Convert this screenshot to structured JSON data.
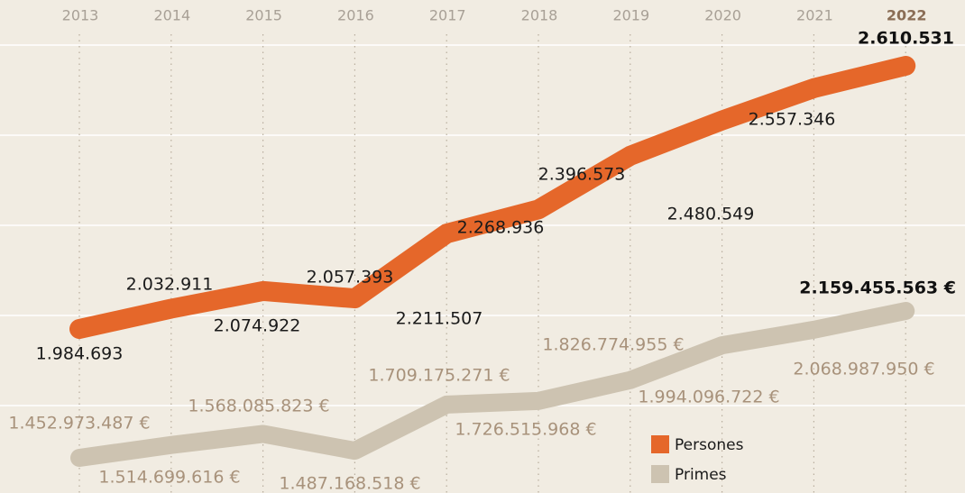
{
  "chart_data": {
    "type": "line",
    "categories": [
      "2013",
      "2014",
      "2015",
      "2016",
      "2017",
      "2018",
      "2019",
      "2020",
      "2021",
      "2022"
    ],
    "series": [
      {
        "name": "Persones",
        "color": "#e5672a",
        "values": [
          1984693,
          2032911,
          2074922,
          2057393,
          2211507,
          2268936,
          2396573,
          2480549,
          2557346,
          2610531
        ],
        "value_labels": [
          "1.984.693",
          "2.032.911",
          "2.074.922",
          "2.057.393",
          "2.211.507",
          "2.268.936",
          "2.396.573",
          "2.480.549",
          "2.557.346",
          "2.610.531"
        ]
      },
      {
        "name": "Primes",
        "color": "#cdc3b1",
        "values": [
          1452973487,
          1514699616,
          1568085823,
          1487168518,
          1709175271,
          1726515968,
          1826774955,
          1994096722,
          2068987950,
          2159455563
        ],
        "value_labels": [
          "1.452.973.487 €",
          "1.514.699.616 €",
          "1.568.085.823 €",
          "1.487.168.518 €",
          "1.709.175.271 €",
          "1.726.515.968 €",
          "1.826.774.955 €",
          "1.994.096.722 €",
          "2.068.987.950 €",
          "2.159.455.563 €"
        ]
      }
    ]
  }
}
